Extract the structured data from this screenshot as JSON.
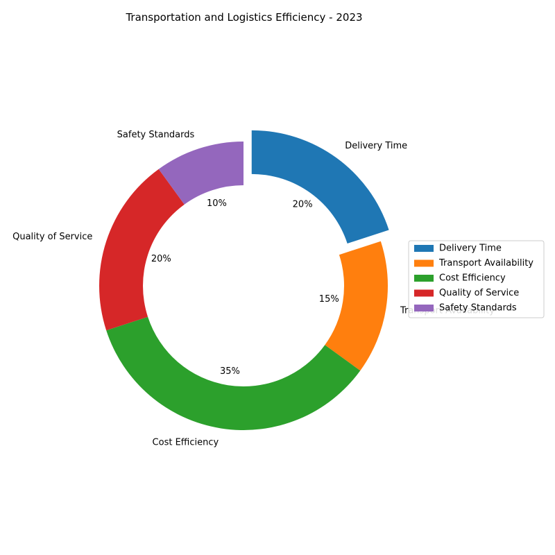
{
  "chart_data": {
    "type": "pie",
    "style": "donut",
    "title": "Transportation and Logistics Efficiency - 2023",
    "categories": [
      "Delivery Time",
      "Transport Availability",
      "Cost Efficiency",
      "Quality of Service",
      "Safety Standards"
    ],
    "values": [
      20,
      15,
      35,
      20,
      10
    ],
    "percent_labels": [
      "20%",
      "15%",
      "35%",
      "20%",
      "10%"
    ],
    "colors": [
      "#1f77b4",
      "#ff7f0e",
      "#2ca02c",
      "#d62728",
      "#9467bd"
    ],
    "exploded": [
      "Delivery Time"
    ],
    "legend": {
      "placement": "right",
      "entries": [
        "Delivery Time",
        "Transport Availability",
        "Cost Efficiency",
        "Quality of Service",
        "Safety Standards"
      ]
    }
  }
}
